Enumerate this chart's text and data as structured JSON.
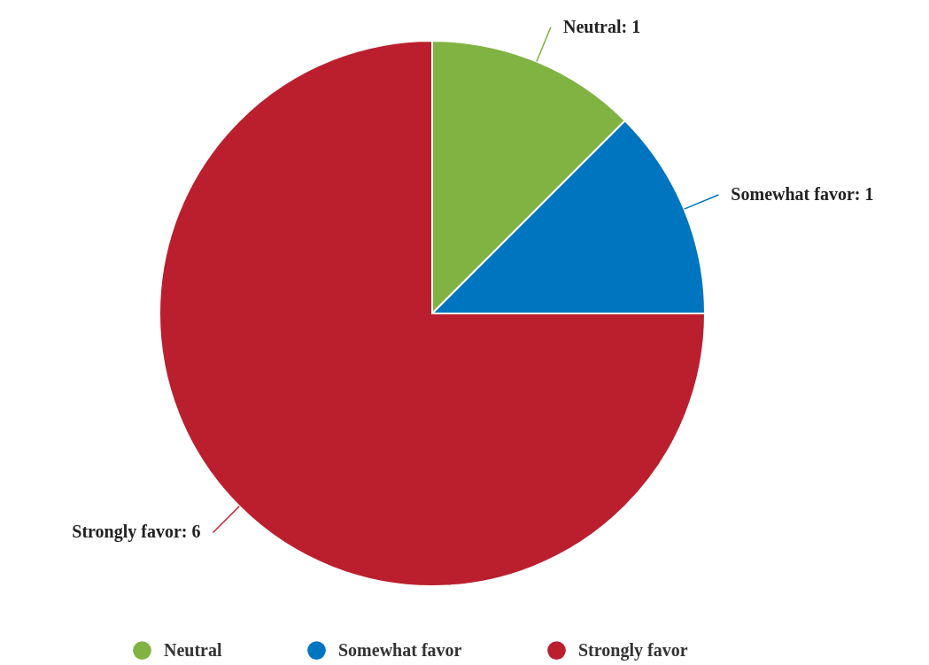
{
  "chart_data": {
    "type": "pie",
    "categories": [
      "Neutral",
      "Somewhat favor",
      "Strongly favor"
    ],
    "values": [
      1,
      1,
      6
    ],
    "colors": [
      "#80b341",
      "#0075bf",
      "#bb1f2e"
    ],
    "value_labels": [
      "Neutral: 1",
      "Somewhat favor: 1",
      "Strongly favor: 6"
    ],
    "legend": "bottom"
  }
}
